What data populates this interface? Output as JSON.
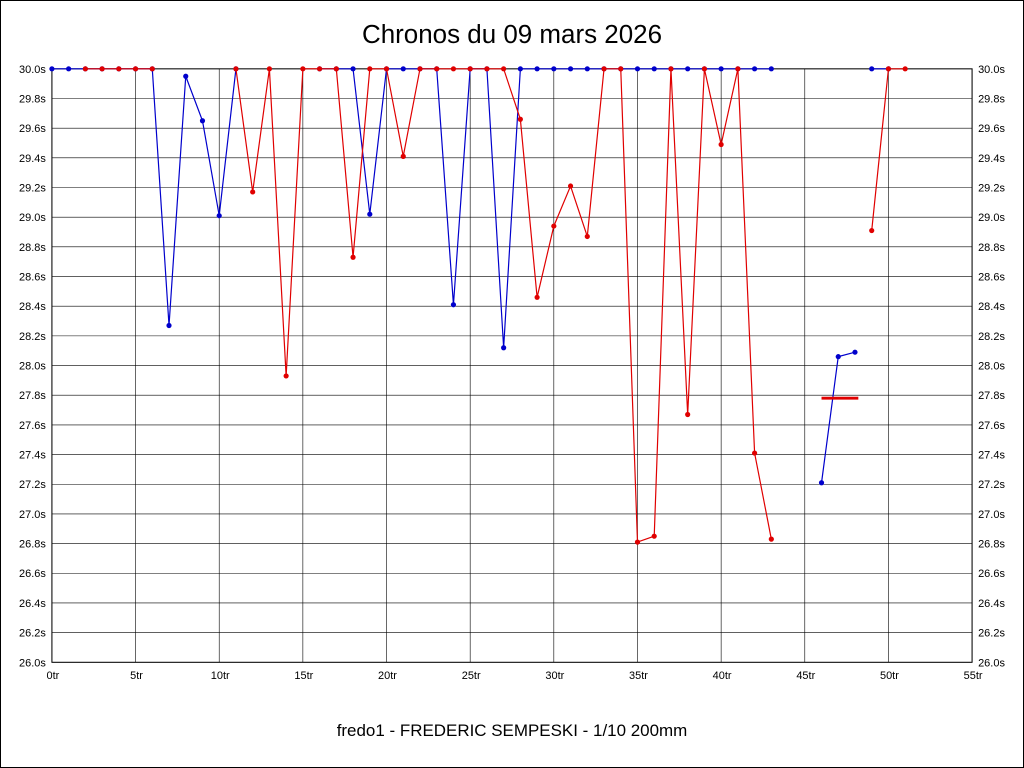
{
  "title": "Chronos du 09 mars 2026",
  "footer": "fredo1 - FREDERIC SEMPESKI - 1/10 200mm",
  "chart_data": {
    "type": "line",
    "title": "Chronos du 09 mars 2026",
    "caption": "fredo1 - FREDERIC SEMPESKI - 1/10 200mm",
    "x_unit": "tr",
    "y_unit": "s",
    "x_range": [
      0,
      55
    ],
    "y_range": [
      26.0,
      30.0
    ],
    "x_tick_step": 5,
    "y_tick_step": 0.2,
    "grid": true,
    "legend": "none",
    "x_tick_labels": [
      "0tr",
      "5tr",
      "10tr",
      "15tr",
      "20tr",
      "25tr",
      "30tr",
      "35tr",
      "40tr",
      "45tr",
      "50tr",
      "55tr"
    ],
    "y_tick_labels": [
      "30.0s",
      "29.8s",
      "29.6s",
      "29.4s",
      "29.2s",
      "29.0s",
      "28.8s",
      "28.6s",
      "28.4s",
      "28.2s",
      "28.0s",
      "27.8s",
      "27.6s",
      "27.4s",
      "27.2s",
      "27.0s",
      "26.8s",
      "26.6s",
      "26.4s",
      "26.2s",
      "26.0s"
    ],
    "series": [
      {
        "name": "serie-bleue",
        "color": "#0000cc",
        "segments": [
          [
            [
              0,
              30.0
            ],
            [
              1,
              30.0
            ],
            [
              2,
              30.0
            ],
            [
              3,
              30.0
            ],
            [
              4,
              30.0
            ],
            [
              5,
              30.0
            ],
            [
              6,
              30.0
            ],
            [
              7,
              28.27
            ],
            [
              8,
              29.95
            ],
            [
              9,
              29.65
            ],
            [
              10,
              29.01
            ],
            [
              11,
              30.0
            ]
          ],
          [
            [
              16,
              30.0
            ],
            [
              17,
              30.0
            ],
            [
              18,
              30.0
            ],
            [
              19,
              29.02
            ],
            [
              20,
              30.0
            ],
            [
              21,
              30.0
            ],
            [
              22,
              30.0
            ],
            [
              23,
              30.0
            ],
            [
              24,
              28.41
            ],
            [
              25,
              30.0
            ],
            [
              26,
              30.0
            ],
            [
              27,
              28.12
            ],
            [
              28,
              30.0
            ],
            [
              29,
              30.0
            ],
            [
              30,
              30.0
            ],
            [
              31,
              30.0
            ],
            [
              32,
              30.0
            ],
            [
              33,
              30.0
            ],
            [
              34,
              30.0
            ],
            [
              35,
              30.0
            ],
            [
              36,
              30.0
            ],
            [
              37,
              30.0
            ],
            [
              38,
              30.0
            ],
            [
              39,
              30.0
            ],
            [
              40,
              30.0
            ],
            [
              41,
              30.0
            ],
            [
              42,
              30.0
            ],
            [
              43,
              30.0
            ]
          ],
          [
            [
              46,
              27.21
            ],
            [
              47,
              28.06
            ],
            [
              48,
              28.09
            ]
          ],
          [
            [
              49,
              30.0
            ],
            [
              50,
              30.0
            ]
          ]
        ]
      },
      {
        "name": "serie-rouge",
        "color": "#e00000",
        "segments": [
          [
            [
              2,
              30.0
            ],
            [
              3,
              30.0
            ],
            [
              4,
              30.0
            ],
            [
              5,
              30.0
            ],
            [
              6,
              30.0
            ]
          ],
          [
            [
              11,
              30.0
            ],
            [
              12,
              29.17
            ],
            [
              13,
              30.0
            ],
            [
              14,
              27.93
            ],
            [
              15,
              30.0
            ],
            [
              16,
              30.0
            ],
            [
              17,
              30.0
            ],
            [
              18,
              28.73
            ],
            [
              19,
              30.0
            ],
            [
              20,
              30.0
            ],
            [
              21,
              29.41
            ],
            [
              22,
              30.0
            ],
            [
              23,
              30.0
            ],
            [
              24,
              30.0
            ],
            [
              25,
              30.0
            ],
            [
              26,
              30.0
            ],
            [
              27,
              30.0
            ],
            [
              28,
              29.66
            ],
            [
              29,
              28.46
            ],
            [
              30,
              28.94
            ],
            [
              31,
              29.21
            ],
            [
              32,
              28.87
            ],
            [
              33,
              30.0
            ],
            [
              34,
              30.0
            ],
            [
              35,
              26.81
            ],
            [
              36,
              26.85
            ],
            [
              37,
              30.0
            ],
            [
              38,
              27.67
            ],
            [
              39,
              30.0
            ],
            [
              40,
              29.49
            ],
            [
              41,
              30.0
            ],
            [
              42,
              27.41
            ],
            [
              43,
              26.83
            ]
          ],
          [
            [
              49,
              28.91
            ],
            [
              50,
              30.0
            ],
            [
              51,
              30.0
            ]
          ]
        ]
      }
    ],
    "marker_line": {
      "name": "repere-rouge",
      "color": "#e00000",
      "x_from": 46.0,
      "x_to": 48.2,
      "y": 27.78
    }
  }
}
